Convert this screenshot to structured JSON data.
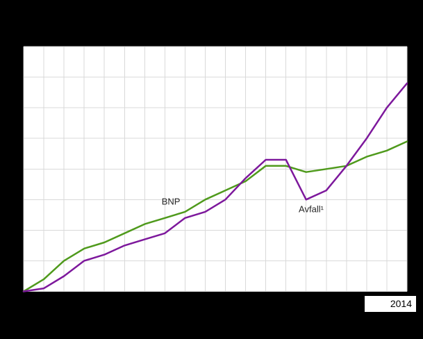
{
  "chart": {
    "background_color": "#000000",
    "plot_background_color": "#ffffff",
    "grid_color": "#d9d9d9",
    "visible_x_tick_label": "2014"
  },
  "chart_data": {
    "type": "line",
    "title": "",
    "xlabel": "",
    "ylabel": "",
    "x": [
      1995,
      1996,
      1997,
      1998,
      1999,
      2000,
      2001,
      2002,
      2003,
      2004,
      2005,
      2006,
      2007,
      2008,
      2009,
      2010,
      2011,
      2012,
      2013,
      2014
    ],
    "ylim": [
      100,
      180
    ],
    "grid": true,
    "grid_step_y": 10,
    "legend_position": "none",
    "index_base_note": "index 1995=100, y-axis labels not visible in image",
    "series": [
      {
        "name": "BNP",
        "color": "#4f9a1c",
        "values": [
          100,
          104,
          110,
          114,
          116,
          119,
          122,
          124,
          126,
          130,
          133,
          136,
          141,
          141,
          139,
          140,
          141,
          144,
          146,
          149
        ]
      },
      {
        "name": "Avfall¹",
        "color": "#7d189c",
        "values": [
          100,
          101,
          105,
          110,
          112,
          115,
          117,
          119,
          124,
          126,
          130,
          137,
          143,
          143,
          130,
          133,
          141,
          150,
          160,
          168
        ]
      }
    ],
    "annotations": [
      {
        "text": "BNP",
        "year": 2002.3,
        "value": 129.4
      },
      {
        "text": "Avfall¹",
        "year": 2009.25,
        "value": 126.9
      }
    ]
  }
}
